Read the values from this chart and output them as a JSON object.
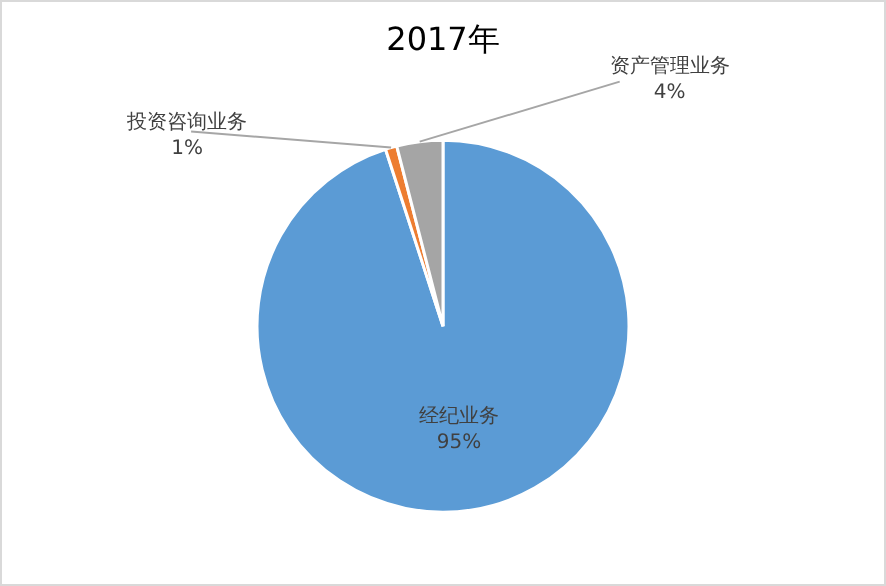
{
  "chart_data": {
    "type": "pie",
    "title": "2017年",
    "categories": [
      "经纪业务",
      "投资咨询业务",
      "资产管理业务"
    ],
    "values": [
      95,
      1,
      4
    ],
    "colors": [
      "#5b9bd5",
      "#ed7d31",
      "#a5a5a5"
    ],
    "value_labels": [
      "95%",
      "1%",
      "4%"
    ],
    "legend": false
  }
}
